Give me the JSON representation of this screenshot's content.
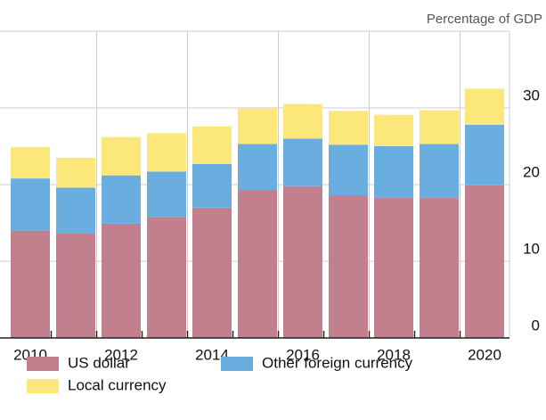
{
  "chart_data": {
    "type": "stacked_bar",
    "y_label": "Percentage of GDP",
    "categories": [
      "2010",
      null,
      "2012",
      null,
      "2014",
      null,
      "2016",
      null,
      "2018",
      null,
      "2020"
    ],
    "series": [
      {
        "name": "US dollar",
        "color": "#c27f8e",
        "values": [
          14.0,
          13.6,
          14.9,
          15.7,
          17.0,
          19.3,
          19.8,
          18.6,
          18.3,
          18.3,
          19.9
        ]
      },
      {
        "name": "Other foreign currency",
        "color": "#6aaee0",
        "values": [
          6.8,
          6.0,
          6.3,
          6.0,
          5.7,
          6.0,
          6.2,
          6.6,
          6.7,
          7.0,
          7.9
        ]
      },
      {
        "name": "Local currency",
        "color": "#fce77a",
        "values": [
          4.1,
          3.9,
          5.0,
          5.0,
          4.9,
          4.7,
          4.5,
          4.4,
          4.1,
          4.4,
          4.7
        ]
      }
    ],
    "ylim": [
      0,
      40
    ],
    "yticks": [
      0,
      10,
      20,
      30,
      40
    ],
    "grid": true
  }
}
